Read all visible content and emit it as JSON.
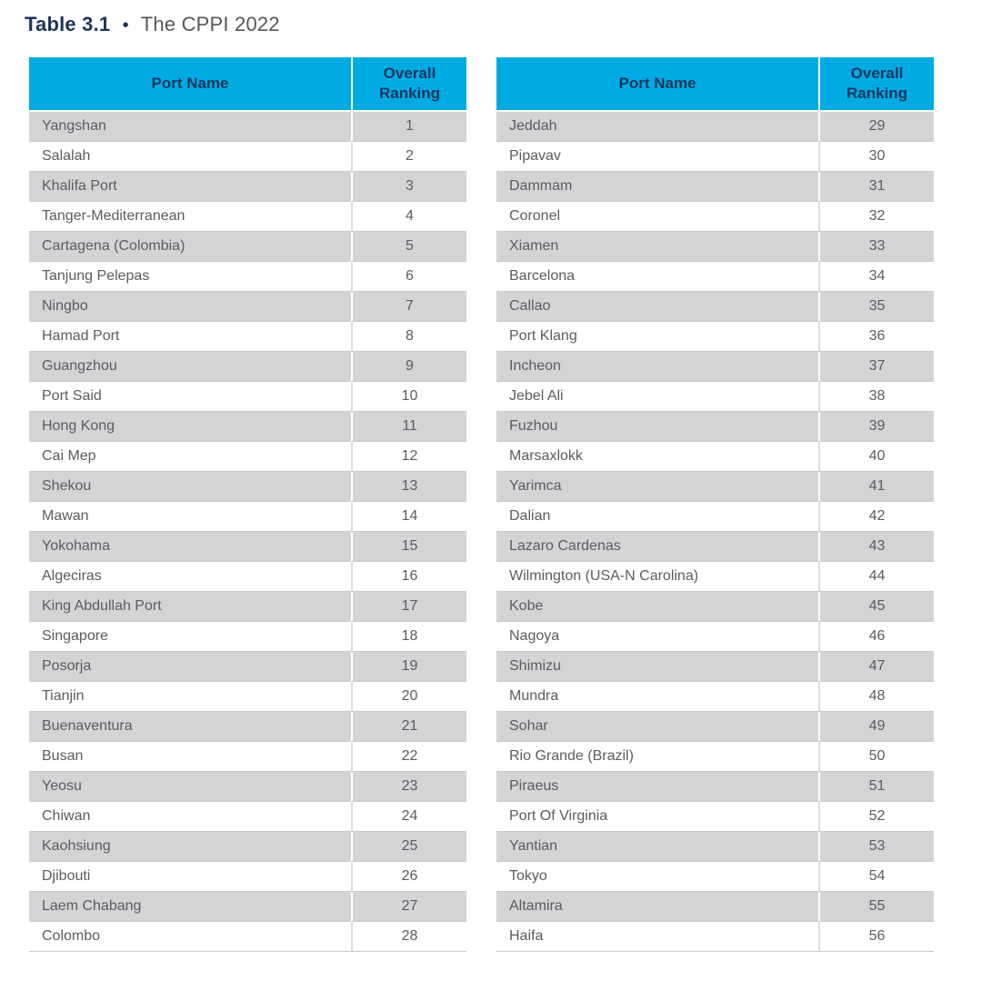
{
  "title": {
    "label": "Table 3.1",
    "bullet": "•",
    "caption": "The CPPI 2022"
  },
  "columns": {
    "port": "Port Name",
    "ranking": "Overall Ranking"
  },
  "tables": {
    "left": {
      "rows": [
        [
          "Yangshan",
          "1"
        ],
        [
          "Salalah",
          "2"
        ],
        [
          "Khalifa Port",
          "3"
        ],
        [
          "Tanger-Mediterranean",
          "4"
        ],
        [
          "Cartagena (Colombia)",
          "5"
        ],
        [
          "Tanjung Pelepas",
          "6"
        ],
        [
          "Ningbo",
          "7"
        ],
        [
          "Hamad Port",
          "8"
        ],
        [
          "Guangzhou",
          "9"
        ],
        [
          "Port Said",
          "10"
        ],
        [
          "Hong Kong",
          "11"
        ],
        [
          "Cai Mep",
          "12"
        ],
        [
          "Shekou",
          "13"
        ],
        [
          "Mawan",
          "14"
        ],
        [
          "Yokohama",
          "15"
        ],
        [
          "Algeciras",
          "16"
        ],
        [
          "King Abdullah Port",
          "17"
        ],
        [
          "Singapore",
          "18"
        ],
        [
          "Posorja",
          "19"
        ],
        [
          "Tianjin",
          "20"
        ],
        [
          "Buenaventura",
          "21"
        ],
        [
          "Busan",
          "22"
        ],
        [
          "Yeosu",
          "23"
        ],
        [
          "Chiwan",
          "24"
        ],
        [
          "Kaohsiung",
          "25"
        ],
        [
          "Djibouti",
          "26"
        ],
        [
          "Laem Chabang",
          "27"
        ],
        [
          "Colombo",
          "28"
        ]
      ]
    },
    "right": {
      "rows": [
        [
          "Jeddah",
          "29"
        ],
        [
          "Pipavav",
          "30"
        ],
        [
          "Dammam",
          "31"
        ],
        [
          "Coronel",
          "32"
        ],
        [
          "Xiamen",
          "33"
        ],
        [
          "Barcelona",
          "34"
        ],
        [
          "Callao",
          "35"
        ],
        [
          "Port Klang",
          "36"
        ],
        [
          "Incheon",
          "37"
        ],
        [
          "Jebel Ali",
          "38"
        ],
        [
          "Fuzhou",
          "39"
        ],
        [
          "Marsaxlokk",
          "40"
        ],
        [
          "Yarimca",
          "41"
        ],
        [
          "Dalian",
          "42"
        ],
        [
          "Lazaro Cardenas",
          "43"
        ],
        [
          "Wilmington (USA-N Carolina)",
          "44"
        ],
        [
          "Kobe",
          "45"
        ],
        [
          "Nagoya",
          "46"
        ],
        [
          "Shimizu",
          "47"
        ],
        [
          "Mundra",
          "48"
        ],
        [
          "Sohar",
          "49"
        ],
        [
          "Rio Grande (Brazil)",
          "50"
        ],
        [
          "Piraeus",
          "51"
        ],
        [
          "Port Of Virginia",
          "52"
        ],
        [
          "Yantian",
          "53"
        ],
        [
          "Tokyo",
          "54"
        ],
        [
          "Altamira",
          "55"
        ],
        [
          "Haifa",
          "56"
        ]
      ]
    }
  },
  "colors": {
    "header_bg": "#00ABE4",
    "navy": "#1B365D",
    "title_gray": "#54565B",
    "body_text": "#5B5C5F",
    "row_alt": "#D3D4D6",
    "row_line": "#C9CACC",
    "divider_light": "#DCDDDE"
  }
}
